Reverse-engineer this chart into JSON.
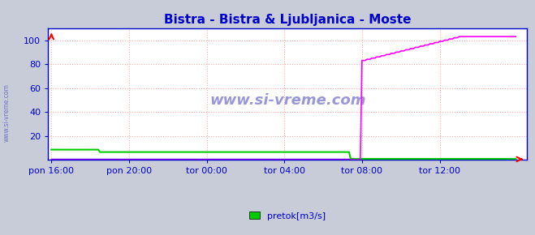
{
  "title": "Bistra - Bistra & Ljubljanica - Moste",
  "title_color": "#0000cc",
  "outer_bg_color": "#c8ccd8",
  "plot_bg_color": "#ffffff",
  "watermark": "www.si-vreme.com",
  "watermark_color": "#4444bb",
  "ylim": [
    0,
    110
  ],
  "yticks": [
    20,
    40,
    60,
    80,
    100
  ],
  "grid_color": "#ffaaaa",
  "grid_linestyle": ":",
  "series1_color": "#00cc00",
  "series2_color": "#ff00ff",
  "series3_color": "#0000cc",
  "legend1_label": "pretok[m3/s]",
  "legend2_label": "pretok[m3/s]",
  "legend1_color": "#00cc00",
  "legend2_color": "#ff00ff",
  "n_points": 288,
  "xtick_labels": [
    "pon 16:00",
    "pon 20:00",
    "tor 00:00",
    "tor 04:00",
    "tor 08:00",
    "tor 12:00"
  ],
  "xtick_positions": [
    0,
    48,
    96,
    144,
    192,
    240
  ],
  "green_level_start": 8.5,
  "green_level_end": 6.5,
  "green_drop_index": 30,
  "green_end_index": 185,
  "magenta_start_index": 192,
  "magenta_start_value": 83,
  "magenta_plateau_index": 252,
  "magenta_plateau_value": 103
}
